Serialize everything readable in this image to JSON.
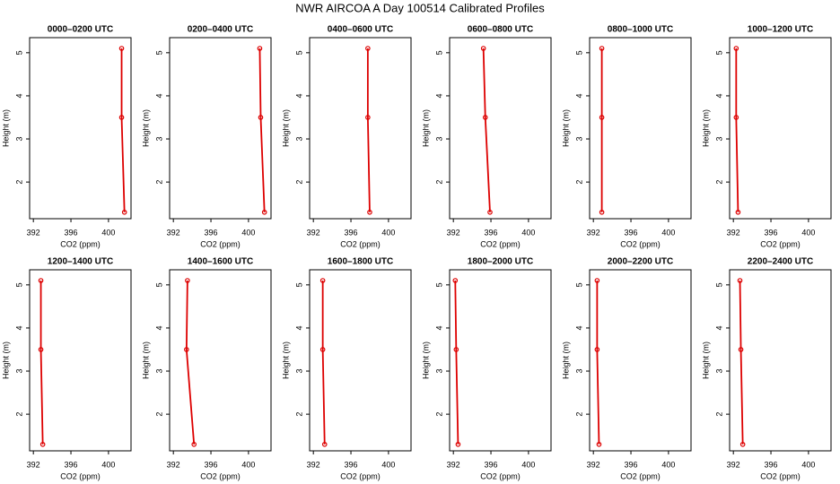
{
  "title": "NWR AIRCOA A  Day 100514  Calibrated Profiles",
  "chart_data": [
    {
      "type": "line",
      "title": "0000–0200 UTC",
      "xlabel": "CO2 (ppm)",
      "ylabel": "Height (m)",
      "color": "#dd0000",
      "x": [
        401.4,
        401.4,
        401.7
      ],
      "values": [
        5.1,
        3.5,
        1.3
      ],
      "xlim": [
        391.6,
        402.4
      ],
      "xticks": [
        392,
        396,
        400
      ],
      "ylim": [
        1.15,
        5.35
      ],
      "yticks": [
        2,
        3,
        4,
        5
      ]
    },
    {
      "type": "line",
      "title": "0200–0400 UTC",
      "xlabel": "CO2 (ppm)",
      "ylabel": "Height (m)",
      "color": "#dd0000",
      "x": [
        401.2,
        401.3,
        401.7
      ],
      "values": [
        5.1,
        3.5,
        1.3
      ],
      "xlim": [
        391.6,
        402.4
      ],
      "xticks": [
        392,
        396,
        400
      ],
      "ylim": [
        1.15,
        5.35
      ],
      "yticks": [
        2,
        3,
        4,
        5
      ]
    },
    {
      "type": "line",
      "title": "0400–0600 UTC",
      "xlabel": "CO2 (ppm)",
      "ylabel": "Height (m)",
      "color": "#dd0000",
      "x": [
        397.8,
        397.8,
        398.0
      ],
      "values": [
        5.1,
        3.5,
        1.3
      ],
      "xlim": [
        391.6,
        402.4
      ],
      "xticks": [
        392,
        396,
        400
      ],
      "ylim": [
        1.15,
        5.35
      ],
      "yticks": [
        2,
        3,
        4,
        5
      ]
    },
    {
      "type": "line",
      "title": "0600–0800 UTC",
      "xlabel": "CO2 (ppm)",
      "ylabel": "Height (m)",
      "color": "#dd0000",
      "x": [
        395.2,
        395.4,
        395.9
      ],
      "values": [
        5.1,
        3.5,
        1.3
      ],
      "xlim": [
        391.6,
        402.4
      ],
      "xticks": [
        392,
        396,
        400
      ],
      "ylim": [
        1.15,
        5.35
      ],
      "yticks": [
        2,
        3,
        4,
        5
      ]
    },
    {
      "type": "line",
      "title": "0800–1000 UTC",
      "xlabel": "CO2 (ppm)",
      "ylabel": "Height (m)",
      "color": "#dd0000",
      "x": [
        392.9,
        392.9,
        392.9
      ],
      "values": [
        5.1,
        3.5,
        1.3
      ],
      "xlim": [
        391.6,
        402.4
      ],
      "xticks": [
        392,
        396,
        400
      ],
      "ylim": [
        1.15,
        5.35
      ],
      "yticks": [
        2,
        3,
        4,
        5
      ]
    },
    {
      "type": "line",
      "title": "1000–1200 UTC",
      "xlabel": "CO2 (ppm)",
      "ylabel": "Height (m)",
      "color": "#dd0000",
      "x": [
        392.3,
        392.3,
        392.5
      ],
      "values": [
        5.1,
        3.5,
        1.3
      ],
      "xlim": [
        391.6,
        402.4
      ],
      "xticks": [
        392,
        396,
        400
      ],
      "ylim": [
        1.15,
        5.35
      ],
      "yticks": [
        2,
        3,
        4,
        5
      ]
    },
    {
      "type": "line",
      "title": "1200–1400 UTC",
      "xlabel": "CO2 (ppm)",
      "ylabel": "Height (m)",
      "color": "#dd0000",
      "x": [
        392.8,
        392.8,
        393.0
      ],
      "values": [
        5.1,
        3.5,
        1.3
      ],
      "xlim": [
        391.6,
        402.4
      ],
      "xticks": [
        392,
        396,
        400
      ],
      "ylim": [
        1.15,
        5.35
      ],
      "yticks": [
        2,
        3,
        4,
        5
      ]
    },
    {
      "type": "line",
      "title": "1400–1600 UTC",
      "xlabel": "CO2 (ppm)",
      "ylabel": "Height (m)",
      "color": "#dd0000",
      "x": [
        393.5,
        393.4,
        394.2
      ],
      "values": [
        5.1,
        3.5,
        1.3
      ],
      "xlim": [
        391.6,
        402.4
      ],
      "xticks": [
        392,
        396,
        400
      ],
      "ylim": [
        1.15,
        5.35
      ],
      "yticks": [
        2,
        3,
        4,
        5
      ]
    },
    {
      "type": "line",
      "title": "1600–1800 UTC",
      "xlabel": "CO2 (ppm)",
      "ylabel": "Height (m)",
      "color": "#dd0000",
      "x": [
        393.0,
        393.0,
        393.2
      ],
      "values": [
        5.1,
        3.5,
        1.3
      ],
      "xlim": [
        391.6,
        402.4
      ],
      "xticks": [
        392,
        396,
        400
      ],
      "ylim": [
        1.15,
        5.35
      ],
      "yticks": [
        2,
        3,
        4,
        5
      ]
    },
    {
      "type": "line",
      "title": "1800–2000 UTC",
      "xlabel": "CO2 (ppm)",
      "ylabel": "Height (m)",
      "color": "#dd0000",
      "x": [
        392.2,
        392.3,
        392.5
      ],
      "values": [
        5.1,
        3.5,
        1.3
      ],
      "xlim": [
        391.6,
        402.4
      ],
      "xticks": [
        392,
        396,
        400
      ],
      "ylim": [
        1.15,
        5.35
      ],
      "yticks": [
        2,
        3,
        4,
        5
      ]
    },
    {
      "type": "line",
      "title": "2000–2200 UTC",
      "xlabel": "CO2 (ppm)",
      "ylabel": "Height (m)",
      "color": "#dd0000",
      "x": [
        392.4,
        392.4,
        392.6
      ],
      "values": [
        5.1,
        3.5,
        1.3
      ],
      "xlim": [
        391.6,
        402.4
      ],
      "xticks": [
        392,
        396,
        400
      ],
      "ylim": [
        1.15,
        5.35
      ],
      "yticks": [
        2,
        3,
        4,
        5
      ]
    },
    {
      "type": "line",
      "title": "2200–2400 UTC",
      "xlabel": "CO2 (ppm)",
      "ylabel": "Height (m)",
      "color": "#dd0000",
      "x": [
        392.7,
        392.8,
        393.0
      ],
      "values": [
        5.1,
        3.5,
        1.3
      ],
      "xlim": [
        391.6,
        402.4
      ],
      "xticks": [
        392,
        396,
        400
      ],
      "ylim": [
        1.15,
        5.35
      ],
      "yticks": [
        2,
        3,
        4,
        5
      ]
    }
  ]
}
